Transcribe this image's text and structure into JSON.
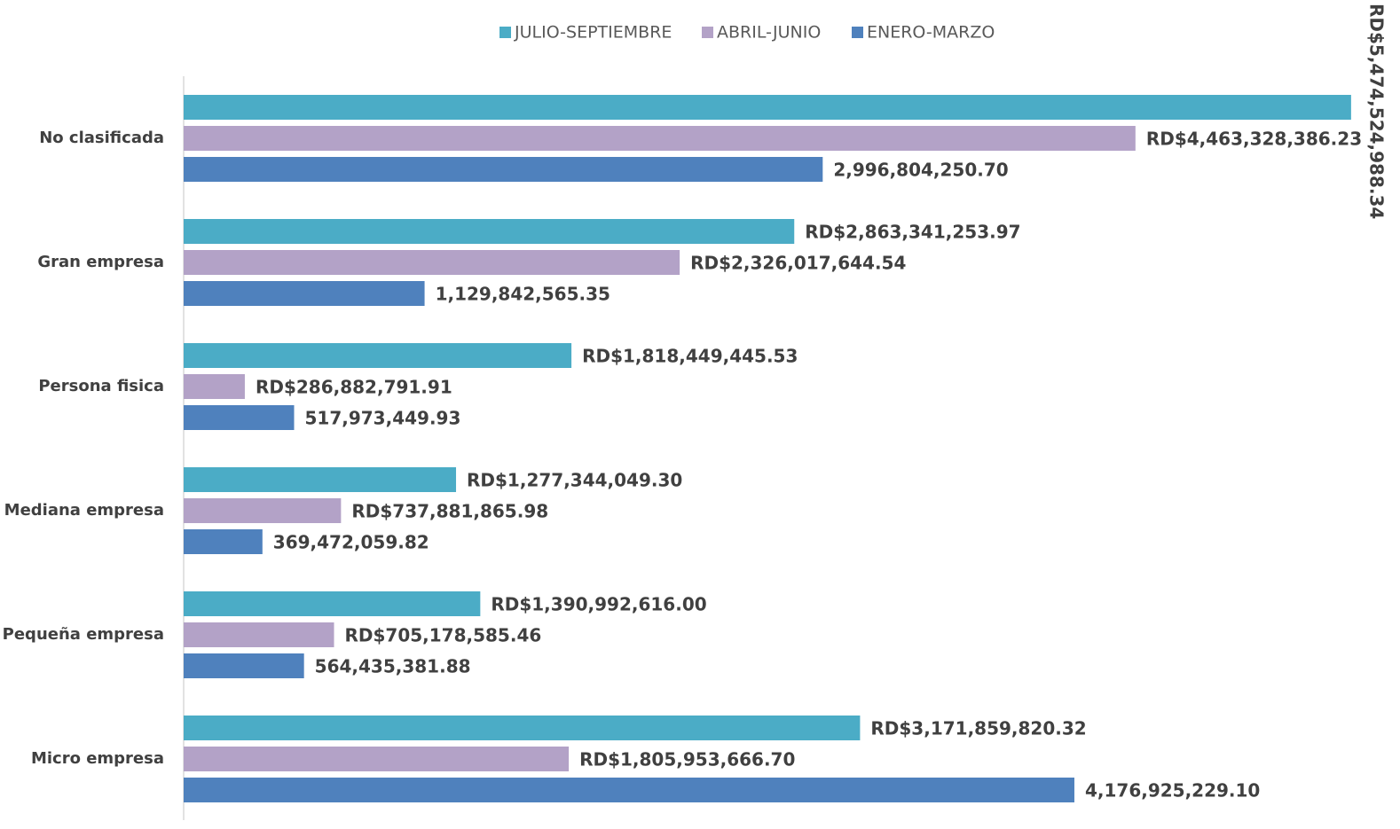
{
  "chart_data": {
    "type": "bar",
    "orientation": "horizontal",
    "categories": [
      "No clasificada",
      "Gran empresa",
      "Persona fisica",
      "Mediana empresa",
      "Pequeña empresa",
      "Micro empresa"
    ],
    "series": [
      {
        "name": "JULIO-SEPTIEMBRE",
        "color": "#4bacc6",
        "values": [
          5474524988.34,
          2863341253.97,
          1818449445.53,
          1277344049.3,
          1390992616.0,
          3171859820.32
        ],
        "value_labels": [
          "RD$5,474,524,988.34",
          "RD$2,863,341,253.97",
          "RD$1,818,449,445.53",
          "RD$1,277,344,049.30",
          "RD$1,390,992,616.00",
          "RD$3,171,859,820.32"
        ]
      },
      {
        "name": "ABRIL-JUNIO",
        "color": "#b3a2c7",
        "values": [
          4463328386.23,
          2326017644.54,
          286882791.91,
          737881865.98,
          705178585.46,
          1805953666.7
        ],
        "value_labels": [
          "RD$4,463,328,386.23",
          "RD$2,326,017,644.54",
          "RD$286,882,791.91",
          "RD$737,881,865.98",
          "RD$705,178,585.46",
          "RD$1,805,953,666.70"
        ]
      },
      {
        "name": "ENERO-MARZO",
        "color": "#4f81bd",
        "values": [
          2996804250.7,
          1129842565.35,
          517973449.93,
          369472059.82,
          564435381.88,
          4176925229.1
        ],
        "value_labels": [
          "2,996,804,250.70",
          "1,129,842,565.35",
          "517,973,449.93",
          "369,472,059.82",
          "564,435,381.88",
          "4,176,925,229.10"
        ]
      }
    ],
    "xlim": [
      0,
      5500000000
    ],
    "legend": "top"
  }
}
